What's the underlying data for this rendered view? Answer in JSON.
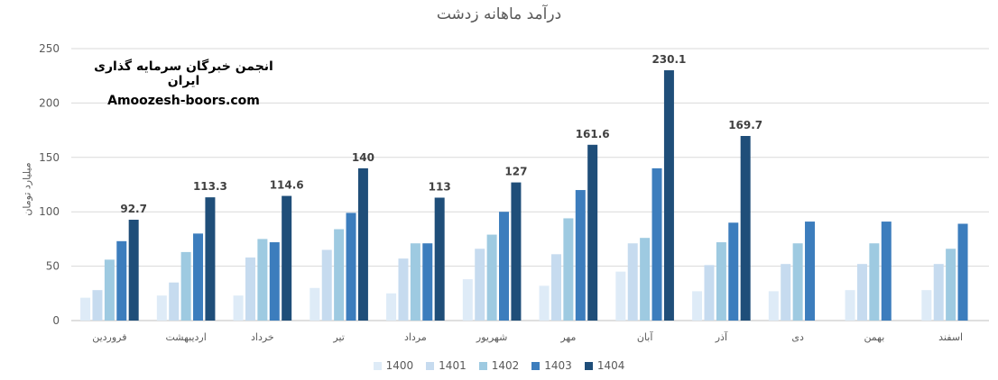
{
  "chart_data": {
    "type": "bar",
    "title": "درآمد ماهانه زدشت",
    "ylabel": "میلیارد تومان",
    "ylim": [
      0,
      250
    ],
    "yticks": [
      0,
      50,
      100,
      150,
      200,
      250
    ],
    "grid": true,
    "legend_position": "bottom",
    "categories": [
      "فروردین",
      "اردیبهشت",
      "خرداد",
      "تیر",
      "مرداد",
      "شهریور",
      "مهر",
      "آبان",
      "آذر",
      "دی",
      "بهمن",
      "اسفند"
    ],
    "series": [
      {
        "name": "1400",
        "color": "#deebf7",
        "values": [
          21,
          23,
          23,
          30,
          25,
          38,
          32,
          45,
          27,
          27,
          28,
          28
        ]
      },
      {
        "name": "1401",
        "color": "#c6dbef",
        "values": [
          28,
          35,
          58,
          65,
          57,
          66,
          61,
          71,
          51,
          52,
          52,
          52
        ]
      },
      {
        "name": "1402",
        "color": "#9ecae1",
        "values": [
          56,
          63,
          75,
          84,
          71,
          79,
          94,
          76,
          72,
          71,
          71,
          66
        ]
      },
      {
        "name": "1403",
        "color": "#3c7dbd",
        "values": [
          73,
          80,
          72,
          99,
          71,
          100,
          120,
          140,
          90,
          91,
          91,
          89
        ]
      },
      {
        "name": "1404",
        "color": "#1f4e79",
        "values": [
          92.7,
          113.3,
          114.6,
          140,
          113,
          127,
          161.6,
          230.1,
          169.7,
          null,
          null,
          null
        ]
      }
    ],
    "data_labels": [
      "92.7",
      "113.3",
      "114.6",
      "140",
      "113",
      "127",
      "161.6",
      "230.1",
      "169.7"
    ]
  },
  "watermark": {
    "line1": "انجمن خبرگان سرمایه گذاری ایران",
    "line2": "Amoozesh-boors.com"
  }
}
